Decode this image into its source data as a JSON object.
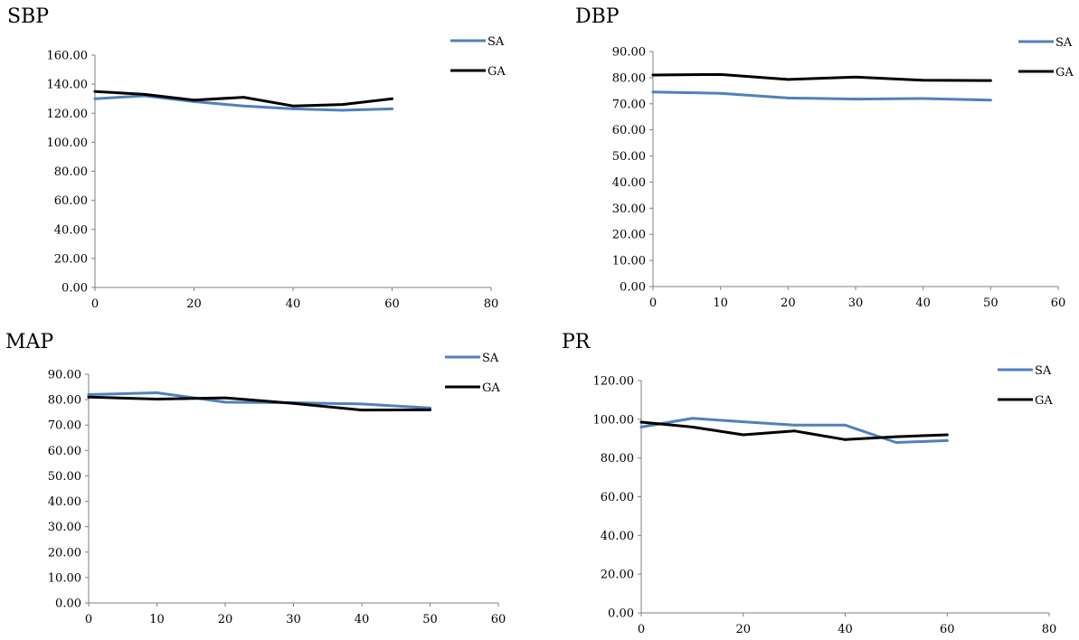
{
  "chart_data": [
    {
      "type": "line",
      "title": "SBP",
      "xlim": [
        0,
        80
      ],
      "x_ticks": [
        "0",
        "20",
        "40",
        "60",
        "80"
      ],
      "ylim": [
        0,
        160
      ],
      "y_ticks": [
        "0.00",
        "20.00",
        "40.00",
        "60.00",
        "80.00",
        "100.00",
        "120.00",
        "140.00",
        "160.00"
      ],
      "legend_position": "top-right",
      "x": [
        0,
        10,
        20,
        30,
        40,
        50,
        60
      ],
      "series": [
        {
          "name": "SA",
          "color": "#4f81bd",
          "values": [
            130,
            132,
            128,
            125,
            123,
            122,
            123
          ]
        },
        {
          "name": "GA",
          "color": "#000000",
          "values": [
            135,
            133,
            129,
            131,
            125,
            126,
            130
          ]
        }
      ]
    },
    {
      "type": "line",
      "title": "DBP",
      "xlim": [
        0,
        60
      ],
      "x_ticks": [
        "0",
        "10",
        "20",
        "30",
        "40",
        "50",
        "60"
      ],
      "ylim": [
        0,
        90
      ],
      "y_ticks": [
        "0.00",
        "10.00",
        "20.00",
        "30.00",
        "40.00",
        "50.00",
        "60.00",
        "70.00",
        "80.00",
        "90.00"
      ],
      "legend_position": "top-right",
      "x": [
        0,
        10,
        20,
        30,
        40,
        50
      ],
      "series": [
        {
          "name": "SA",
          "color": "#4f81bd",
          "values": [
            74.5,
            74,
            72.2,
            71.8,
            72,
            71.4
          ]
        },
        {
          "name": "GA",
          "color": "#000000",
          "values": [
            81,
            81.2,
            79.3,
            80.2,
            79,
            78.9
          ]
        }
      ]
    },
    {
      "type": "line",
      "title": "MAP",
      "xlim": [
        0,
        60
      ],
      "x_ticks": [
        "0",
        "10",
        "20",
        "30",
        "40",
        "50",
        "60"
      ],
      "ylim": [
        0,
        90
      ],
      "y_ticks": [
        "0.00",
        "10.00",
        "20.00",
        "30.00",
        "40.00",
        "50.00",
        "60.00",
        "70.00",
        "80.00",
        "90.00"
      ],
      "legend_position": "top-right",
      "x": [
        0,
        10,
        20,
        30,
        40,
        50
      ],
      "series": [
        {
          "name": "SA",
          "color": "#4f81bd",
          "values": [
            82,
            82.7,
            79,
            78.8,
            78.3,
            76.7
          ]
        },
        {
          "name": "GA",
          "color": "#000000",
          "values": [
            81,
            80.2,
            80.7,
            78.5,
            75.9,
            76
          ]
        }
      ]
    },
    {
      "type": "line",
      "title": "PR",
      "xlim": [
        0,
        80
      ],
      "x_ticks": [
        "0",
        "20",
        "40",
        "60",
        "80"
      ],
      "ylim": [
        0,
        120
      ],
      "y_ticks": [
        "0.00",
        "20.00",
        "40.00",
        "60.00",
        "80.00",
        "100.00",
        "120.00"
      ],
      "legend_position": "top-right",
      "x": [
        0,
        10,
        20,
        30,
        40,
        50,
        60
      ],
      "series": [
        {
          "name": "SA",
          "color": "#4f81bd",
          "values": [
            96,
            100.5,
            98.7,
            97,
            97,
            88,
            89
          ]
        },
        {
          "name": "GA",
          "color": "#000000",
          "values": [
            98.5,
            96,
            92,
            94,
            89.5,
            91,
            92
          ]
        }
      ]
    }
  ]
}
